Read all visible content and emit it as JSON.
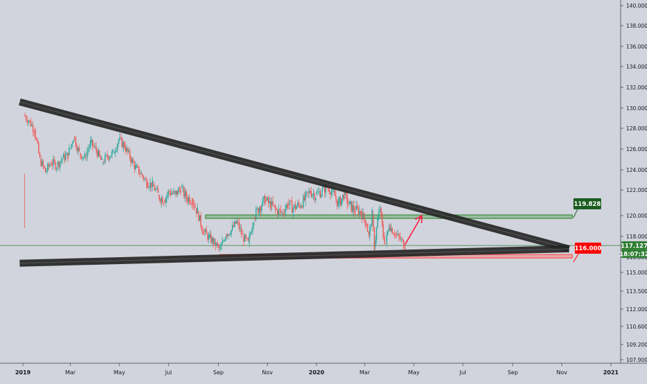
{
  "chart_data": {
    "type": "candlestick",
    "instrument_hint": "price chart (daily candles)",
    "x": {
      "tick_labels": [
        "2019",
        "Mar",
        "May",
        "Jul",
        "Sep",
        "Nov",
        "2020",
        "Mar",
        "May",
        "Jul",
        "Sep",
        "Nov",
        "2021"
      ],
      "tick_dates": [
        "2019-01-01",
        "2019-03-01",
        "2019-05-01",
        "2019-07-01",
        "2019-09-01",
        "2019-11-01",
        "2020-01-01",
        "2020-03-01",
        "2020-05-01",
        "2020-07-01",
        "2020-09-01",
        "2020-11-01",
        "2021-01-01"
      ],
      "bold_ticks": [
        "2019",
        "2020",
        "2021"
      ],
      "range": [
        "2018-12-28",
        "2021-02-05"
      ]
    },
    "y": {
      "tick_labels": [
        "140.000",
        "138.000",
        "136.000",
        "134.000",
        "132.000",
        "130.000",
        "128.000",
        "126.000",
        "124.000",
        "122.000",
        "120.000",
        "118.000",
        "116.000",
        "115.000",
        "113.500",
        "112.000",
        "110.600",
        "109.200",
        "107.900"
      ],
      "tick_values": [
        140.0,
        138.0,
        136.0,
        134.0,
        132.0,
        130.0,
        128.0,
        126.0,
        124.0,
        122.0,
        120.0,
        118.0,
        116.0,
        115.0,
        113.5,
        112.0,
        110.6,
        109.2,
        107.9
      ],
      "scale": "nonlinear (tick labels as printed)"
    },
    "price_series": {
      "color_up": "#26a69a",
      "color_down": "#ef5350",
      "points": [
        [
          "2019-01-02",
          129.3
        ],
        [
          "2019-01-08",
          128.8
        ],
        [
          "2019-01-15",
          127.9
        ],
        [
          "2019-01-22",
          125.0
        ],
        [
          "2019-01-29",
          123.8
        ],
        [
          "2019-02-05",
          124.7
        ],
        [
          "2019-02-12",
          124.4
        ],
        [
          "2019-02-19",
          125.1
        ],
        [
          "2019-02-26",
          125.4
        ],
        [
          "2019-03-05",
          127.2
        ],
        [
          "2019-03-12",
          125.6
        ],
        [
          "2019-03-19",
          125.2
        ],
        [
          "2019-03-26",
          126.6
        ],
        [
          "2019-04-02",
          125.9
        ],
        [
          "2019-04-09",
          124.7
        ],
        [
          "2019-04-16",
          125.3
        ],
        [
          "2019-04-23",
          125.6
        ],
        [
          "2019-04-30",
          126.9
        ],
        [
          "2019-05-07",
          126.3
        ],
        [
          "2019-05-14",
          125.2
        ],
        [
          "2019-05-21",
          124.2
        ],
        [
          "2019-05-28",
          123.6
        ],
        [
          "2019-06-04",
          122.7
        ],
        [
          "2019-06-11",
          122.5
        ],
        [
          "2019-06-18",
          121.6
        ],
        [
          "2019-06-25",
          121.2
        ],
        [
          "2019-07-02",
          121.9
        ],
        [
          "2019-07-09",
          121.6
        ],
        [
          "2019-07-16",
          122.2
        ],
        [
          "2019-07-23",
          121.4
        ],
        [
          "2019-07-30",
          121.3
        ],
        [
          "2019-08-06",
          120.3
        ],
        [
          "2019-08-13",
          118.5
        ],
        [
          "2019-08-20",
          117.9
        ],
        [
          "2019-08-27",
          117.4
        ],
        [
          "2019-09-03",
          116.7
        ],
        [
          "2019-09-10",
          118.2
        ],
        [
          "2019-09-17",
          118.6
        ],
        [
          "2019-09-24",
          119.4
        ],
        [
          "2019-10-01",
          118.0
        ],
        [
          "2019-10-08",
          117.3
        ],
        [
          "2019-10-15",
          119.8
        ],
        [
          "2019-10-22",
          120.7
        ],
        [
          "2019-10-29",
          121.2
        ],
        [
          "2019-11-05",
          120.8
        ],
        [
          "2019-11-12",
          120.4
        ],
        [
          "2019-11-19",
          120.2
        ],
        [
          "2019-11-26",
          120.9
        ],
        [
          "2019-12-03",
          120.6
        ],
        [
          "2019-12-10",
          120.8
        ],
        [
          "2019-12-17",
          121.2
        ],
        [
          "2019-12-24",
          121.9
        ],
        [
          "2019-12-31",
          121.6
        ],
        [
          "2020-01-07",
          121.9
        ],
        [
          "2020-01-14",
          122.3
        ],
        [
          "2020-01-21",
          121.9
        ],
        [
          "2020-01-28",
          120.9
        ],
        [
          "2020-02-04",
          121.6
        ],
        [
          "2020-02-11",
          120.8
        ],
        [
          "2020-02-18",
          120.4
        ],
        [
          "2020-02-25",
          120.3
        ],
        [
          "2020-03-03",
          119.2
        ],
        [
          "2020-03-06",
          118.0
        ],
        [
          "2020-03-10",
          120.0
        ],
        [
          "2020-03-13",
          117.0
        ],
        [
          "2020-03-17",
          119.6
        ],
        [
          "2020-03-20",
          120.6
        ],
        [
          "2020-03-24",
          118.0
        ],
        [
          "2020-03-27",
          117.3
        ],
        [
          "2020-03-31",
          119.1
        ],
        [
          "2020-04-07",
          118.3
        ],
        [
          "2020-04-14",
          117.7
        ],
        [
          "2020-04-20",
          117.1
        ]
      ]
    },
    "price_labels": [
      {
        "text": "119.828",
        "color": "#1b5e20",
        "text_color": "#ffffff"
      },
      {
        "text": "116.000",
        "color": "#ff0000",
        "text_color": "#ffffff"
      },
      {
        "text": "117.127",
        "color": "#2e7d32",
        "text_color": "#ffffff"
      },
      {
        "text": "18:07:32",
        "color": "#2e7d32",
        "text_color": "#ffffff"
      }
    ],
    "drawings": [
      {
        "kind": "trend_line",
        "role": "upper descending trendline",
        "color": "#222222",
        "from": [
          "2018-12-28",
          130.6
        ],
        "to": [
          "2020-11-10",
          116.8
        ]
      },
      {
        "kind": "trend_line",
        "role": "lower ascending trendline",
        "color": "#222222",
        "from": [
          "2018-12-28",
          115.6
        ],
        "to": [
          "2020-11-10",
          116.8
        ]
      },
      {
        "kind": "rectangle",
        "role": "resistance zone",
        "color": "#388e3c",
        "price_top": 120.05,
        "price_bottom": 119.75,
        "from": "2019-08-16",
        "to": "2020-11-14"
      },
      {
        "kind": "rectangle",
        "role": "support zone",
        "color": "#ff5252",
        "price_top": 116.25,
        "price_bottom": 115.95,
        "from": "2019-09-03",
        "to": "2020-11-14"
      },
      {
        "kind": "arrow",
        "role": "projected move",
        "color": "#ff1744",
        "from": [
          "2020-04-20",
          117.2
        ],
        "to": [
          "2020-05-11",
          120.0
        ]
      },
      {
        "kind": "horizontal_line",
        "role": "last price",
        "color": "#2e7d32",
        "price": 117.127
      }
    ],
    "grid": false,
    "legend": "none"
  },
  "colors": {
    "background": "#d1d4dc",
    "axis_line": "#5d606b",
    "axis_text": "#131722",
    "up": "#26a69a",
    "down": "#ef5350"
  }
}
